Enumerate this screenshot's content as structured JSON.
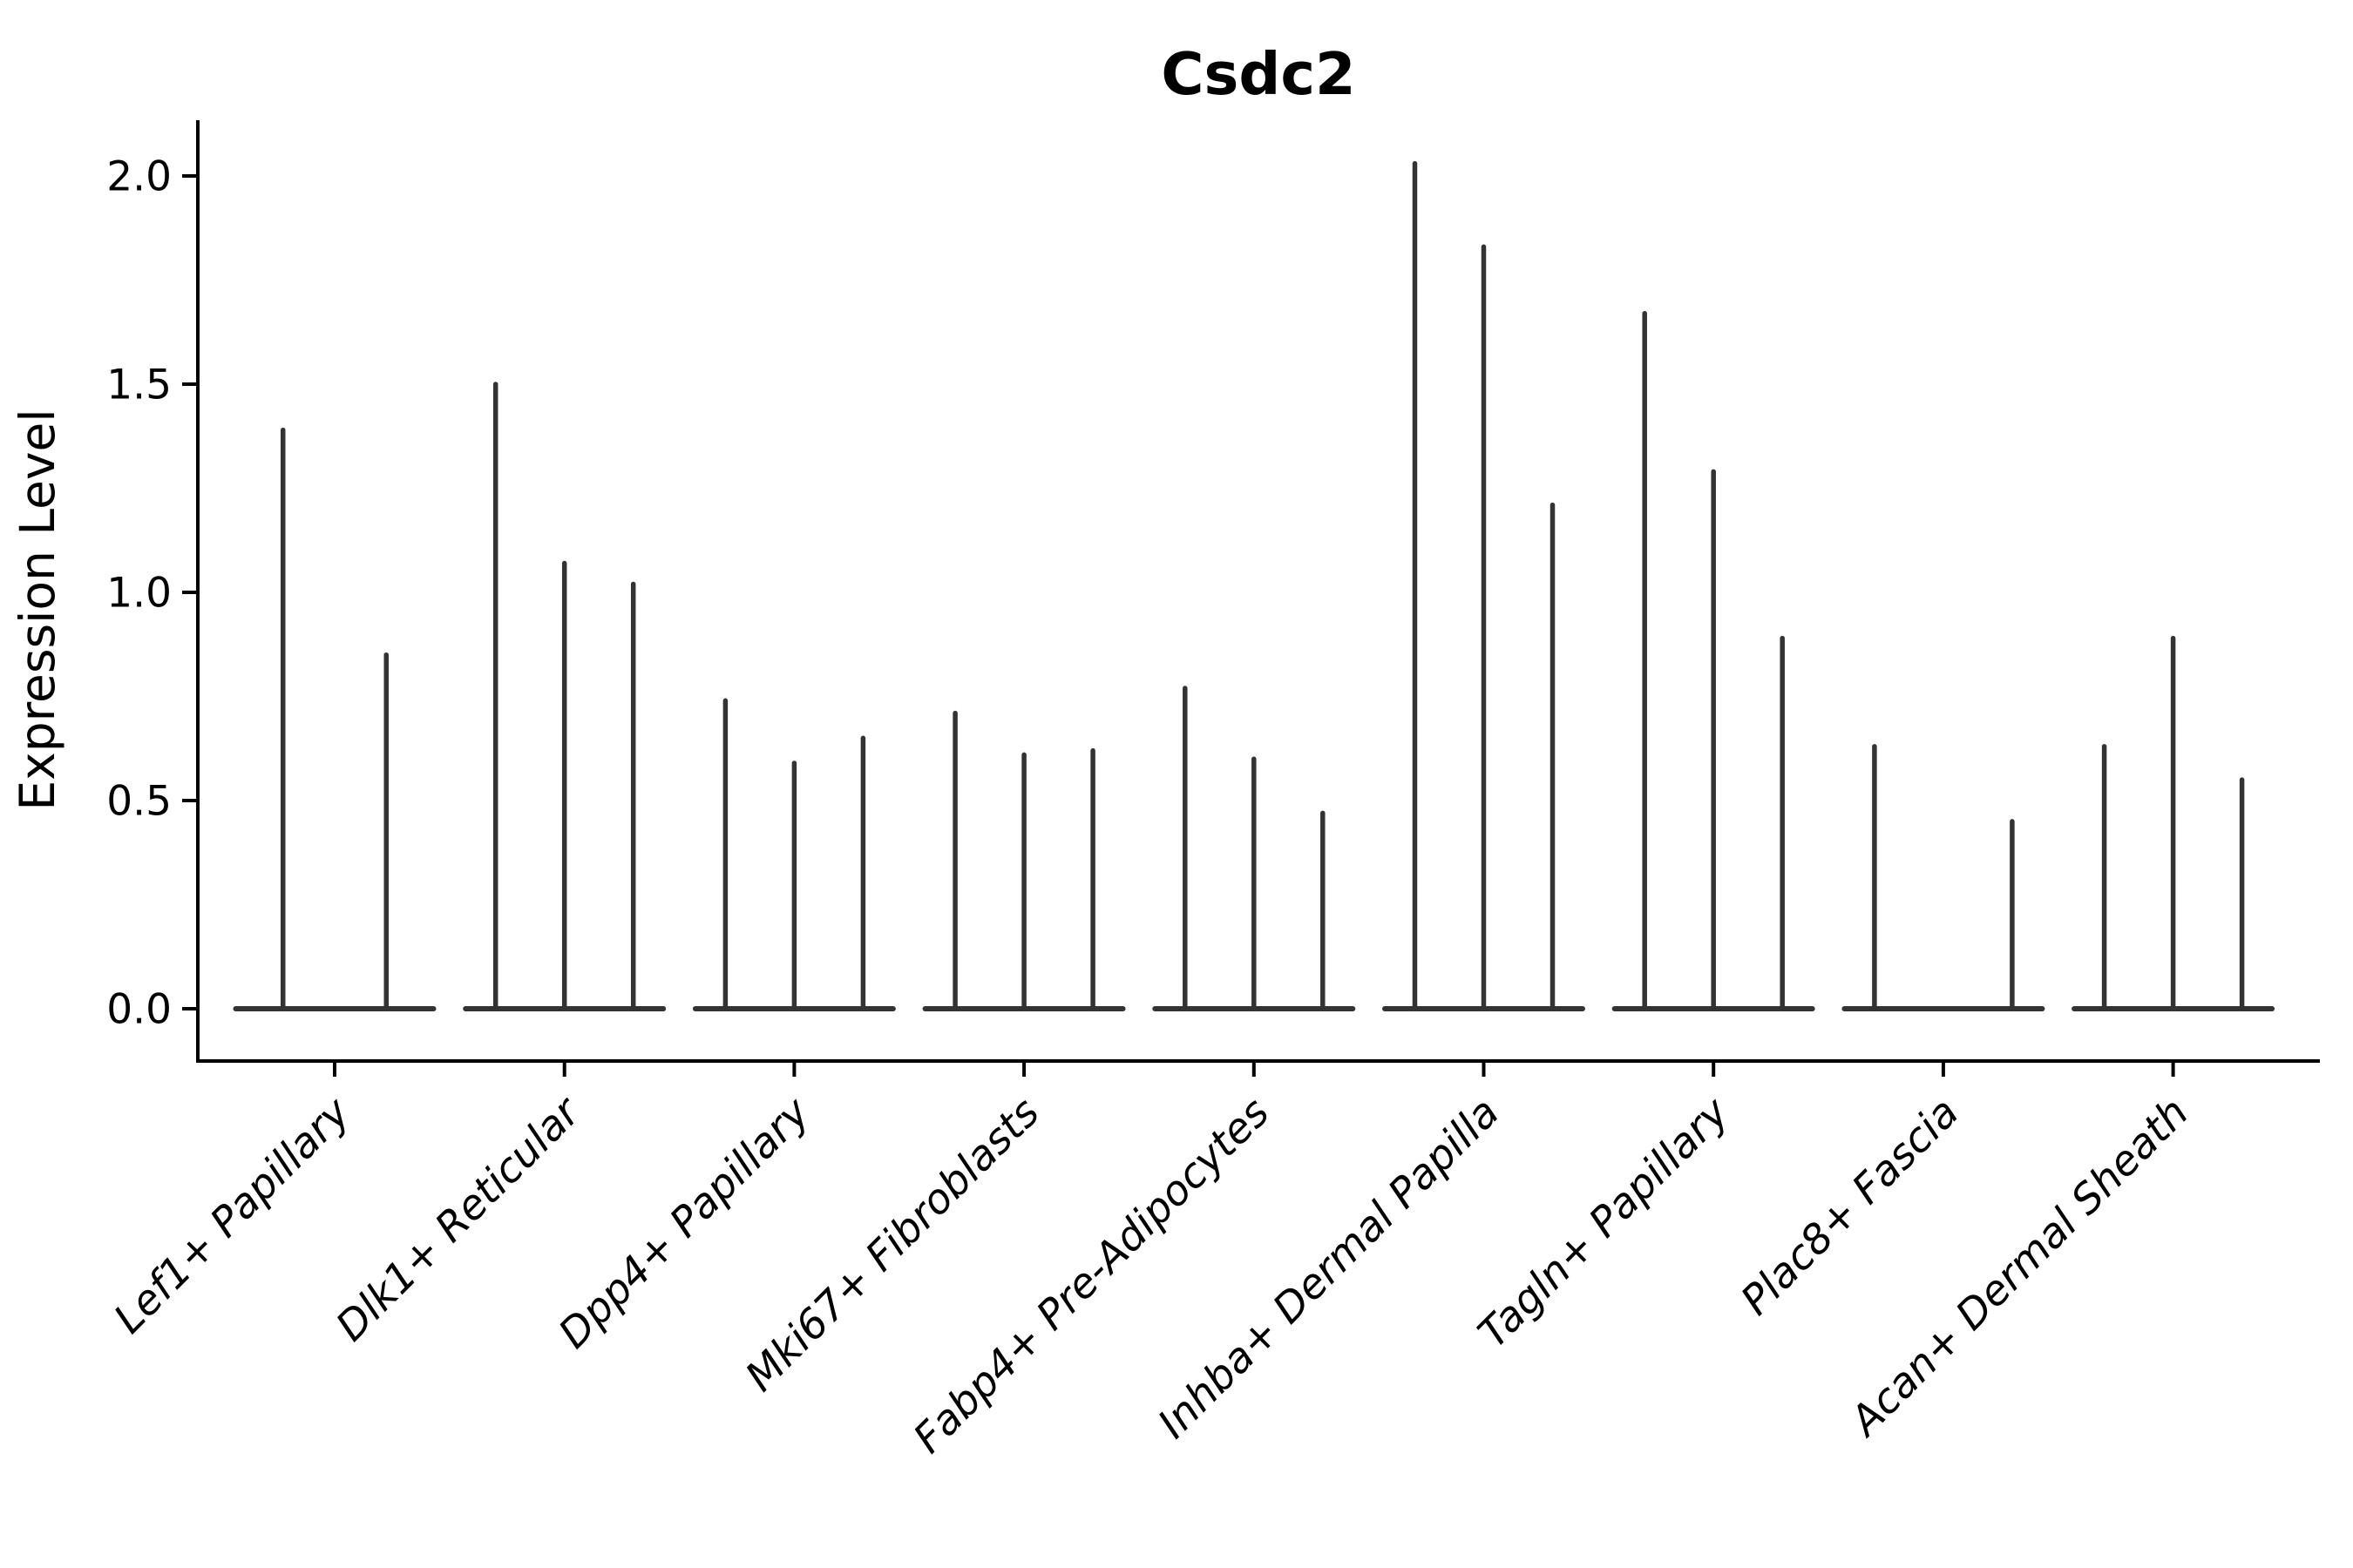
{
  "chart_data": {
    "type": "violin",
    "title": "Csdc2",
    "ylabel": "Expression Level",
    "xlabel": "",
    "yticks": [
      "0.0",
      "0.5",
      "1.0",
      "1.5",
      "2.0"
    ],
    "ytick_values": [
      0.0,
      0.5,
      1.0,
      1.5,
      2.0
    ],
    "ylim": [
      -0.126,
      2.13
    ],
    "grid": "off",
    "legend": "none",
    "shape_note": "Each category shows very thin violins: a flat dense base at expression 0 spanning the group width, with narrow vertical spikes rising to each violin's maximum expression value; null means a violin with all values at 0 (no spike).",
    "categories": [
      "Lef1+ Papillary",
      "Dlk1+ Reticular",
      "Dpp4+ Papillary",
      "Mki67+ Fibroblasts",
      "Fabp4+ Pre-Adipocytes",
      "Inhba+ Dermal Papilla",
      "Tagln+ Papillary",
      "Plac8+ Fascia",
      "Acan+ Dermal Sheath"
    ],
    "groups": [
      {
        "category": "Lef1+ Papillary",
        "violin_max_values": [
          1.39,
          0.85
        ]
      },
      {
        "category": "Dlk1+ Reticular",
        "violin_max_values": [
          1.5,
          1.07,
          1.02
        ]
      },
      {
        "category": "Dpp4+ Papillary",
        "violin_max_values": [
          0.74,
          0.59,
          0.65
        ]
      },
      {
        "category": "Mki67+ Fibroblasts",
        "violin_max_values": [
          0.71,
          0.61,
          0.62
        ]
      },
      {
        "category": "Fabp4+ Pre-Adipocytes",
        "violin_max_values": [
          0.77,
          0.6,
          0.47
        ]
      },
      {
        "category": "Inhba+ Dermal Papilla",
        "violin_max_values": [
          2.03,
          1.83,
          1.21
        ]
      },
      {
        "category": "Tagln+ Papillary",
        "violin_max_values": [
          1.67,
          1.29,
          0.89
        ]
      },
      {
        "category": "Plac8+ Fascia",
        "violin_max_values": [
          0.63,
          null,
          0.45
        ]
      },
      {
        "category": "Acan+ Dermal Sheath",
        "violin_max_values": [
          0.63,
          0.89,
          0.55
        ]
      }
    ],
    "colors": {
      "violin": "#333333",
      "axis": "#000000",
      "text": "#000000",
      "background": "#ffffff"
    }
  }
}
